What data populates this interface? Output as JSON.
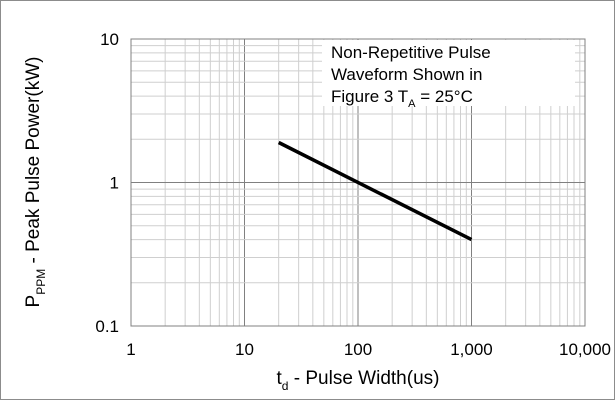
{
  "chart_data": {
    "type": "line",
    "xscale": "log",
    "yscale": "log",
    "xlim": [
      1,
      10000
    ],
    "ylim": [
      0.1,
      10
    ],
    "grid": true,
    "x_ticks": [
      "1",
      "10",
      "100",
      "1,000",
      "10,000"
    ],
    "y_ticks": [
      "0.1",
      "1",
      "10"
    ],
    "xlabel": {
      "main": "t",
      "sub": "d",
      "rest": " - Pulse Width(us)"
    },
    "ylabel": {
      "main": "P",
      "sub": "PPM",
      "rest": " - Peak Pulse Power(kW)"
    },
    "annotation": {
      "line1": "Non-Repetitive Pulse",
      "line2": "Waveform Shown in",
      "line3_main": "Figure 3 T",
      "line3_sub": "A",
      "line3_rest": " = 25°C"
    },
    "series": [
      {
        "x": [
          20,
          1000
        ],
        "y": [
          1.9,
          0.4
        ],
        "color": "#000000"
      }
    ]
  }
}
